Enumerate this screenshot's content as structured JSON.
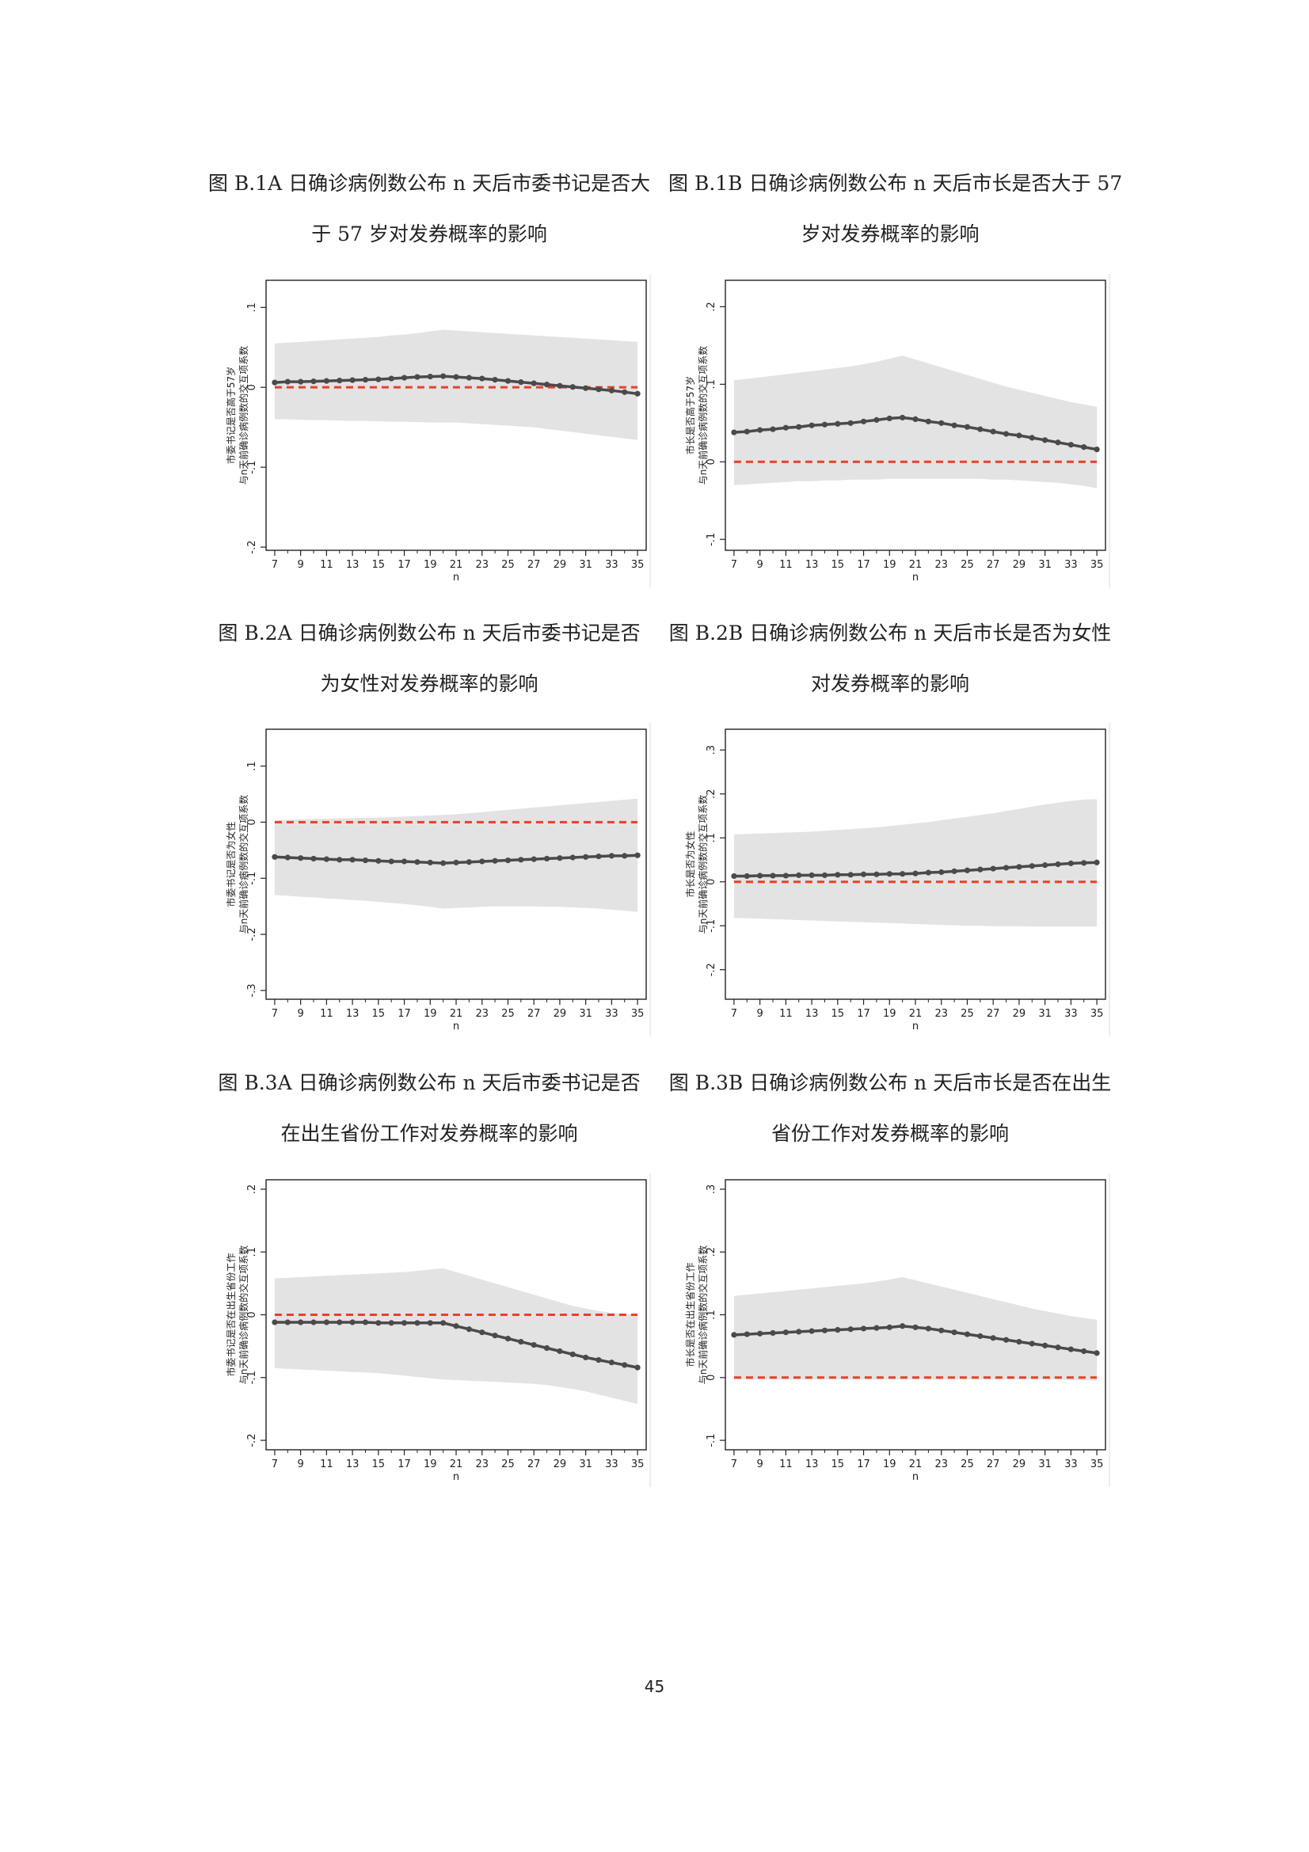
{
  "page_number": "45",
  "colors": {
    "band": "#e3e3e3",
    "line": "#4a4a4a",
    "zero_line": "#e8402a",
    "axis": "#222222"
  },
  "chart_data": [
    {
      "id": "B1A",
      "title_lines": [
        "图 B.1A 日确诊病例数公布 n 天后市委书记是否大",
        "于 57 岁对发券概率的影响"
      ],
      "type": "line",
      "xlabel": "n",
      "ylabel_lines": [
        "市委书记是否高于57岁",
        "与n天前确诊病例数的交互项系数"
      ],
      "x": [
        7,
        8,
        9,
        10,
        11,
        12,
        13,
        14,
        15,
        16,
        17,
        18,
        19,
        20,
        21,
        22,
        23,
        24,
        25,
        26,
        27,
        28,
        29,
        30,
        31,
        32,
        33,
        34,
        35
      ],
      "x_ticks": [
        7,
        9,
        11,
        13,
        15,
        17,
        19,
        21,
        23,
        25,
        27,
        29,
        31,
        33,
        35
      ],
      "ylim": [
        -0.2,
        0.13
      ],
      "y_ticks": [
        {
          "v": -0.2,
          "label": "-.2"
        },
        {
          "v": -0.1,
          "label": "-.1"
        },
        {
          "v": 0,
          "label": "0"
        },
        {
          "v": 0.1,
          "label": ".1"
        }
      ],
      "series": [
        {
          "values": [
            0.006,
            0.007,
            0.007,
            0.0075,
            0.008,
            0.0085,
            0.009,
            0.0095,
            0.01,
            0.011,
            0.012,
            0.013,
            0.0135,
            0.014,
            0.013,
            0.012,
            0.011,
            0.0095,
            0.008,
            0.0065,
            0.005,
            0.0035,
            0.002,
            0.0005,
            -0.001,
            -0.0025,
            -0.004,
            -0.006,
            -0.008
          ]
        }
      ],
      "ci_upper": [
        0.055,
        0.056,
        0.057,
        0.058,
        0.059,
        0.06,
        0.061,
        0.062,
        0.063,
        0.065,
        0.066,
        0.068,
        0.07,
        0.072,
        0.071,
        0.07,
        0.069,
        0.068,
        0.067,
        0.066,
        0.065,
        0.064,
        0.063,
        0.062,
        0.061,
        0.06,
        0.059,
        0.058,
        0.057
      ],
      "ci_lower": [
        -0.04,
        -0.04,
        -0.0405,
        -0.041,
        -0.041,
        -0.0415,
        -0.042,
        -0.042,
        -0.0425,
        -0.043,
        -0.043,
        -0.0435,
        -0.044,
        -0.044,
        -0.044,
        -0.045,
        -0.046,
        -0.047,
        -0.048,
        -0.049,
        -0.05,
        -0.052,
        -0.054,
        -0.056,
        -0.058,
        -0.06,
        -0.062,
        -0.064,
        -0.066
      ]
    },
    {
      "id": "B1B",
      "title_lines": [
        "图 B.1B 日确诊病例数公布 n 天后市长是否大于 57",
        "岁对发券概率的影响"
      ],
      "type": "line",
      "xlabel": "n",
      "ylabel_lines": [
        "市长是否高于57岁",
        "与n天前确诊病例数的交互项系数"
      ],
      "x": [
        7,
        8,
        9,
        10,
        11,
        12,
        13,
        14,
        15,
        16,
        17,
        18,
        19,
        20,
        21,
        22,
        23,
        24,
        25,
        26,
        27,
        28,
        29,
        30,
        31,
        32,
        33,
        34,
        35
      ],
      "x_ticks": [
        7,
        9,
        11,
        13,
        15,
        17,
        19,
        21,
        23,
        25,
        27,
        29,
        31,
        33,
        35
      ],
      "ylim": [
        -0.11,
        0.23
      ],
      "y_ticks": [
        {
          "v": -0.1,
          "label": "-.1"
        },
        {
          "v": 0,
          "label": "0"
        },
        {
          "v": 0.1,
          "label": ".1"
        },
        {
          "v": 0.2,
          "label": ".2"
        }
      ],
      "series": [
        {
          "values": [
            0.038,
            0.039,
            0.041,
            0.042,
            0.044,
            0.045,
            0.047,
            0.048,
            0.049,
            0.05,
            0.052,
            0.054,
            0.056,
            0.057,
            0.055,
            0.052,
            0.05,
            0.047,
            0.045,
            0.042,
            0.039,
            0.036,
            0.034,
            0.031,
            0.028,
            0.025,
            0.022,
            0.019,
            0.016
          ]
        }
      ],
      "ci_upper": [
        0.105,
        0.107,
        0.109,
        0.111,
        0.113,
        0.115,
        0.117,
        0.119,
        0.121,
        0.123,
        0.126,
        0.129,
        0.133,
        0.137,
        0.132,
        0.127,
        0.122,
        0.117,
        0.112,
        0.107,
        0.102,
        0.097,
        0.093,
        0.089,
        0.085,
        0.081,
        0.077,
        0.074,
        0.071
      ],
      "ci_lower": [
        -0.03,
        -0.029,
        -0.028,
        -0.027,
        -0.026,
        -0.025,
        -0.025,
        -0.024,
        -0.024,
        -0.023,
        -0.023,
        -0.023,
        -0.022,
        -0.022,
        -0.022,
        -0.022,
        -0.022,
        -0.022,
        -0.022,
        -0.022,
        -0.023,
        -0.023,
        -0.024,
        -0.025,
        -0.026,
        -0.027,
        -0.029,
        -0.031,
        -0.034
      ]
    },
    {
      "id": "B2A",
      "title_lines": [
        "图 B.2A  日确诊病例数公布 n 天后市委书记是否",
        "为女性对发券概率的影响"
      ],
      "type": "line",
      "xlabel": "n",
      "ylabel_lines": [
        "市委书记是否为女性",
        "与n天前确诊病例数的交互项系数"
      ],
      "x": [
        7,
        8,
        9,
        10,
        11,
        12,
        13,
        14,
        15,
        16,
        17,
        18,
        19,
        20,
        21,
        22,
        23,
        24,
        25,
        26,
        27,
        28,
        29,
        30,
        31,
        32,
        33,
        34,
        35
      ],
      "x_ticks": [
        7,
        9,
        11,
        13,
        15,
        17,
        19,
        21,
        23,
        25,
        27,
        29,
        31,
        33,
        35
      ],
      "ylim": [
        -0.31,
        0.16
      ],
      "y_ticks": [
        {
          "v": -0.3,
          "label": "-.3"
        },
        {
          "v": -0.2,
          "label": "-.2"
        },
        {
          "v": -0.1,
          "label": "-.1"
        },
        {
          "v": 0,
          "label": "0"
        },
        {
          "v": 0.1,
          "label": ".1"
        }
      ],
      "series": [
        {
          "values": [
            -0.062,
            -0.063,
            -0.064,
            -0.065,
            -0.066,
            -0.067,
            -0.067,
            -0.068,
            -0.069,
            -0.07,
            -0.07,
            -0.071,
            -0.072,
            -0.073,
            -0.072,
            -0.071,
            -0.07,
            -0.069,
            -0.068,
            -0.067,
            -0.066,
            -0.065,
            -0.064,
            -0.063,
            -0.062,
            -0.061,
            -0.06,
            -0.06,
            -0.059
          ]
        }
      ],
      "ci_upper": [
        0.003,
        0.004,
        0.005,
        0.006,
        0.006,
        0.007,
        0.007,
        0.008,
        0.008,
        0.009,
        0.01,
        0.011,
        0.012,
        0.013,
        0.014,
        0.016,
        0.018,
        0.02,
        0.022,
        0.024,
        0.026,
        0.028,
        0.03,
        0.032,
        0.034,
        0.036,
        0.038,
        0.04,
        0.042
      ],
      "ci_lower": [
        -0.13,
        -0.131,
        -0.133,
        -0.134,
        -0.136,
        -0.137,
        -0.139,
        -0.14,
        -0.142,
        -0.144,
        -0.146,
        -0.148,
        -0.151,
        -0.154,
        -0.153,
        -0.152,
        -0.151,
        -0.15,
        -0.15,
        -0.15,
        -0.15,
        -0.151,
        -0.151,
        -0.152,
        -0.153,
        -0.154,
        -0.156,
        -0.158,
        -0.16
      ]
    },
    {
      "id": "B2B",
      "title_lines": [
        "图 B.2B  日确诊病例数公布 n 天后市长是否为女性",
        "对发券概率的影响"
      ],
      "type": "line",
      "xlabel": "n",
      "ylabel_lines": [
        "市长是否为女性",
        "与n天前确诊病例数的交互项系数"
      ],
      "x": [
        7,
        8,
        9,
        10,
        11,
        12,
        13,
        14,
        15,
        16,
        17,
        18,
        19,
        20,
        21,
        22,
        23,
        24,
        25,
        26,
        27,
        28,
        29,
        30,
        31,
        32,
        33,
        34,
        35
      ],
      "x_ticks": [
        7,
        9,
        11,
        13,
        15,
        17,
        19,
        21,
        23,
        25,
        27,
        29,
        31,
        33,
        35
      ],
      "ylim": [
        -0.26,
        0.34
      ],
      "y_ticks": [
        {
          "v": -0.2,
          "label": "-.2"
        },
        {
          "v": -0.1,
          "label": "-.1"
        },
        {
          "v": 0,
          "label": "0"
        },
        {
          "v": 0.1,
          "label": ".1"
        },
        {
          "v": 0.2,
          "label": ".2"
        },
        {
          "v": 0.3,
          "label": ".3"
        }
      ],
      "series": [
        {
          "values": [
            0.013,
            0.013,
            0.014,
            0.014,
            0.014,
            0.015,
            0.015,
            0.015,
            0.016,
            0.016,
            0.017,
            0.017,
            0.018,
            0.018,
            0.019,
            0.021,
            0.022,
            0.024,
            0.026,
            0.028,
            0.03,
            0.032,
            0.034,
            0.036,
            0.038,
            0.04,
            0.042,
            0.043,
            0.044
          ]
        }
      ],
      "ci_upper": [
        0.108,
        0.109,
        0.11,
        0.111,
        0.112,
        0.113,
        0.114,
        0.116,
        0.118,
        0.12,
        0.122,
        0.124,
        0.127,
        0.13,
        0.133,
        0.136,
        0.14,
        0.144,
        0.148,
        0.152,
        0.156,
        0.161,
        0.166,
        0.171,
        0.176,
        0.18,
        0.184,
        0.187,
        0.188
      ],
      "ci_lower": [
        -0.082,
        -0.083,
        -0.084,
        -0.085,
        -0.086,
        -0.087,
        -0.088,
        -0.089,
        -0.09,
        -0.091,
        -0.092,
        -0.093,
        -0.094,
        -0.095,
        -0.096,
        -0.097,
        -0.098,
        -0.099,
        -0.1,
        -0.1,
        -0.101,
        -0.101,
        -0.101,
        -0.102,
        -0.102,
        -0.102,
        -0.102,
        -0.102,
        -0.102
      ]
    },
    {
      "id": "B3A",
      "title_lines": [
        "图 B.3A  日确诊病例数公布 n 天后市委书记是否",
        "在出生省份工作对发券概率的影响"
      ],
      "type": "line",
      "xlabel": "n",
      "ylabel_lines": [
        "市委书记是否在出生省份工作",
        "与n天前确诊病例数的交互项系数"
      ],
      "x": [
        7,
        8,
        9,
        10,
        11,
        12,
        13,
        14,
        15,
        16,
        17,
        18,
        19,
        20,
        21,
        22,
        23,
        24,
        25,
        26,
        27,
        28,
        29,
        30,
        31,
        32,
        33,
        34,
        35
      ],
      "x_ticks": [
        7,
        9,
        11,
        13,
        15,
        17,
        19,
        21,
        23,
        25,
        27,
        29,
        31,
        33,
        35
      ],
      "ylim": [
        -0.21,
        0.21
      ],
      "y_ticks": [
        {
          "v": -0.2,
          "label": "-.2"
        },
        {
          "v": -0.1,
          "label": "-.1"
        },
        {
          "v": 0,
          "label": "0"
        },
        {
          "v": 0.1,
          "label": ".1"
        },
        {
          "v": 0.2,
          "label": ".2"
        }
      ],
      "series": [
        {
          "values": [
            -0.012,
            -0.012,
            -0.012,
            -0.012,
            -0.012,
            -0.012,
            -0.012,
            -0.012,
            -0.013,
            -0.013,
            -0.013,
            -0.013,
            -0.013,
            -0.013,
            -0.018,
            -0.023,
            -0.028,
            -0.033,
            -0.038,
            -0.043,
            -0.048,
            -0.053,
            -0.058,
            -0.063,
            -0.068,
            -0.072,
            -0.076,
            -0.08,
            -0.084
          ]
        }
      ],
      "ci_upper": [
        0.058,
        0.059,
        0.06,
        0.061,
        0.062,
        0.063,
        0.064,
        0.065,
        0.066,
        0.067,
        0.068,
        0.07,
        0.072,
        0.074,
        0.068,
        0.062,
        0.056,
        0.05,
        0.044,
        0.038,
        0.032,
        0.026,
        0.02,
        0.014,
        0.01,
        0.006,
        0.003,
        0.001,
        0.0
      ],
      "ci_lower": [
        -0.085,
        -0.086,
        -0.087,
        -0.088,
        -0.089,
        -0.09,
        -0.091,
        -0.092,
        -0.093,
        -0.095,
        -0.097,
        -0.099,
        -0.101,
        -0.103,
        -0.104,
        -0.105,
        -0.106,
        -0.107,
        -0.108,
        -0.109,
        -0.11,
        -0.112,
        -0.115,
        -0.118,
        -0.122,
        -0.127,
        -0.132,
        -0.137,
        -0.142
      ]
    },
    {
      "id": "B3B",
      "title_lines": [
        "图 B.3B  日确诊病例数公布 n 天后市长是否在出生",
        "省份工作对发券概率的影响"
      ],
      "type": "line",
      "xlabel": "n",
      "ylabel_lines": [
        "市长是否在出生省份工作",
        "与n天前确诊病例数的交互项系数"
      ],
      "x": [
        7,
        8,
        9,
        10,
        11,
        12,
        13,
        14,
        15,
        16,
        17,
        18,
        19,
        20,
        21,
        22,
        23,
        24,
        25,
        26,
        27,
        28,
        29,
        30,
        31,
        32,
        33,
        34,
        35
      ],
      "x_ticks": [
        7,
        9,
        11,
        13,
        15,
        17,
        19,
        21,
        23,
        25,
        27,
        29,
        31,
        33,
        35
      ],
      "ylim": [
        -0.11,
        0.31
      ],
      "y_ticks": [
        {
          "v": -0.1,
          "label": "-.1"
        },
        {
          "v": 0,
          "label": "0"
        },
        {
          "v": 0.1,
          "label": ".1"
        },
        {
          "v": 0.2,
          "label": ".2"
        },
        {
          "v": 0.3,
          "label": ".3"
        }
      ],
      "series": [
        {
          "values": [
            0.068,
            0.069,
            0.07,
            0.071,
            0.072,
            0.073,
            0.074,
            0.075,
            0.076,
            0.077,
            0.078,
            0.079,
            0.08,
            0.082,
            0.08,
            0.078,
            0.075,
            0.072,
            0.069,
            0.066,
            0.063,
            0.06,
            0.057,
            0.054,
            0.051,
            0.048,
            0.045,
            0.042,
            0.039
          ]
        }
      ],
      "ci_upper": [
        0.13,
        0.132,
        0.134,
        0.136,
        0.138,
        0.14,
        0.142,
        0.144,
        0.146,
        0.148,
        0.15,
        0.153,
        0.156,
        0.16,
        0.155,
        0.15,
        0.145,
        0.14,
        0.135,
        0.13,
        0.125,
        0.12,
        0.115,
        0.11,
        0.106,
        0.102,
        0.098,
        0.095,
        0.092
      ],
      "ci_lower": [
        -0.003,
        -0.003,
        -0.003,
        -0.003,
        -0.003,
        -0.003,
        -0.003,
        -0.003,
        -0.003,
        -0.003,
        -0.003,
        -0.003,
        -0.003,
        -0.003,
        -0.003,
        -0.003,
        -0.003,
        -0.003,
        -0.003,
        -0.003,
        -0.003,
        -0.003,
        -0.003,
        -0.003,
        -0.003,
        -0.003,
        -0.004,
        -0.004,
        -0.005
      ]
    }
  ]
}
